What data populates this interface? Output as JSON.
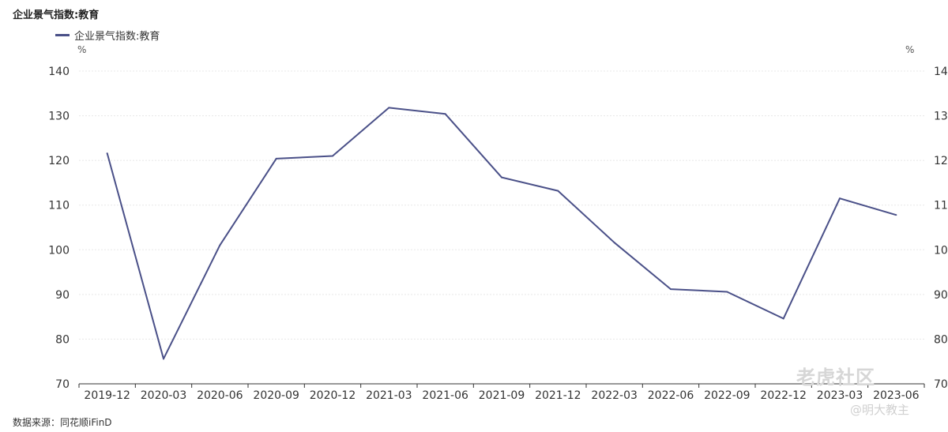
{
  "header": {
    "title": "企业景气指数:教育",
    "legend_label": "企业景气指数:教育",
    "unit_left": "%",
    "unit_right": "%"
  },
  "footer": {
    "source": "数据来源：同花顺iFinD"
  },
  "watermark": {
    "main": "老虎社区",
    "sub": "@明大教主"
  },
  "colors": {
    "line": "#4a5088",
    "grid": "#e8e8e8",
    "axis": "#333333"
  },
  "chart_data": {
    "type": "line",
    "title": "企业景气指数:教育",
    "categories": [
      "2019-12",
      "2020-03",
      "2020-06",
      "2020-09",
      "2020-12",
      "2021-03",
      "2021-06",
      "2021-09",
      "2021-12",
      "2022-03",
      "2022-06",
      "2022-09",
      "2022-12",
      "2023-03",
      "2023-06"
    ],
    "series": [
      {
        "name": "企业景气指数:教育",
        "values": [
          121.6,
          75.6,
          101.0,
          120.4,
          121.0,
          131.8,
          130.4,
          116.2,
          113.2,
          101.6,
          91.2,
          90.6,
          84.6,
          111.5,
          107.8
        ]
      }
    ],
    "ylim": [
      70,
      140
    ],
    "yticks": [
      70,
      80,
      90,
      100,
      110,
      120,
      130,
      140
    ],
    "ylabel": "%",
    "y2label": "%",
    "grid": true,
    "legend": "top-left"
  }
}
